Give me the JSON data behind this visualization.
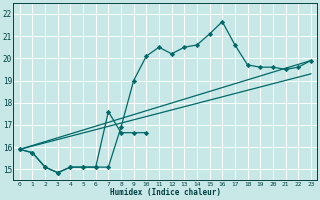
{
  "xlabel": "Humidex (Indice chaleur)",
  "background_color": "#c8e8e8",
  "grid_color": "#ffffff",
  "line_color": "#006868",
  "xlim": [
    -0.5,
    23.5
  ],
  "ylim": [
    14.5,
    22.5
  ],
  "xticks": [
    0,
    1,
    2,
    3,
    4,
    5,
    6,
    7,
    8,
    9,
    10,
    11,
    12,
    13,
    14,
    15,
    16,
    17,
    18,
    19,
    20,
    21,
    22,
    23
  ],
  "yticks": [
    15,
    16,
    17,
    18,
    19,
    20,
    21,
    22
  ],
  "lines": [
    {
      "x": [
        0,
        1,
        2,
        3,
        4,
        5,
        6,
        7,
        8,
        9,
        10,
        11,
        12,
        13,
        14,
        15,
        16,
        17,
        18,
        19,
        20,
        21,
        22,
        23
      ],
      "y": [
        15.9,
        15.75,
        15.1,
        14.85,
        15.1,
        15.1,
        15.1,
        15.1,
        16.9,
        19.0,
        20.1,
        20.5,
        20.2,
        20.5,
        20.6,
        21.1,
        21.65,
        20.6,
        19.7,
        19.6,
        19.6,
        19.5,
        19.6,
        19.9
      ],
      "marker": true
    },
    {
      "x": [
        0,
        1,
        2,
        3,
        4,
        5,
        6,
        7,
        8,
        9,
        10
      ],
      "y": [
        15.9,
        15.75,
        15.1,
        14.85,
        15.1,
        15.1,
        15.1,
        17.6,
        16.65,
        16.65,
        16.65
      ],
      "marker": true
    },
    {
      "x": [
        0,
        23
      ],
      "y": [
        15.9,
        19.9
      ],
      "marker": false
    },
    {
      "x": [
        0,
        23
      ],
      "y": [
        15.9,
        19.3
      ],
      "marker": false
    }
  ]
}
